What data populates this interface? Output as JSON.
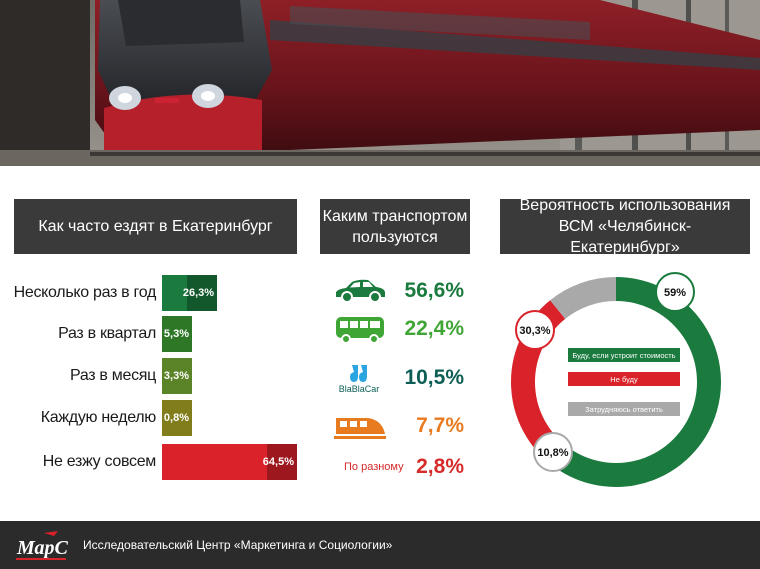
{
  "panels": {
    "frequency": {
      "title": "Как часто ездят в Екатеринбург"
    },
    "transport": {
      "title": "Каким транспортом пользуются"
    },
    "probability": {
      "title": "Вероятность использования ВСМ «Челябинск-Екатеринбург»"
    }
  },
  "colors": {
    "dark_green": "#1b7a3e",
    "green": "#3fa535",
    "light_green": "#7fb73a",
    "olive": "#b3ad26",
    "red": "#d9222a",
    "teal": "#0d5e55",
    "orange": "#e87a1f",
    "grey": "#a9a9a9",
    "header_bg": "#3a3a3a",
    "footer_bg": "#2b2b2b"
  },
  "chart_data": [
    {
      "type": "bar",
      "orientation": "horizontal",
      "title": "Как часто ездят в Екатеринбург",
      "categories": [
        "Несколько раз в год",
        "Раз в квартал",
        "Раз в месяц",
        "Каждую неделю",
        "Не езжу совсем"
      ],
      "values": [
        26.3,
        5.3,
        3.3,
        0.8,
        64.5
      ],
      "value_labels": [
        "26,3%",
        "5,3%",
        "3,3%",
        "0,8%",
        "64,5%"
      ],
      "bar_colors": [
        "#1b7a3e",
        "#3fa535",
        "#7fb73a",
        "#b3ad26",
        "#d9222a"
      ]
    },
    {
      "type": "table",
      "title": "Каким транспортом пользуются",
      "rows": [
        {
          "icon": "car-icon",
          "value": 56.6,
          "label": "56,6%",
          "color": "#1b7a3e"
        },
        {
          "icon": "bus-icon",
          "value": 22.4,
          "label": "22,4%",
          "color": "#3fa535"
        },
        {
          "icon": "blablacar-icon",
          "logo_text": "BlaBlaCar",
          "value": 10.5,
          "label": "10,5%",
          "color": "#0d5e55"
        },
        {
          "icon": "train-icon",
          "value": 7.7,
          "label": "7,7%",
          "color": "#e87a1f"
        },
        {
          "icon": "",
          "text": "По разному",
          "value": 2.8,
          "label": "2,8%",
          "color": "#d62b2b"
        }
      ]
    },
    {
      "type": "pie",
      "donut": true,
      "title": "Вероятность использования ВСМ «Челябинск-Екатеринбург»",
      "slices": [
        {
          "name": "Буду, если устроит стоимость",
          "value": 59,
          "label": "59%",
          "color": "#1b7a3e"
        },
        {
          "name": "Не буду",
          "value": 30.3,
          "label": "30,3%",
          "color": "#d9222a"
        },
        {
          "name": "Затрудняюсь ответить",
          "value": 10.8,
          "label": "10,8%",
          "color": "#a9a9a9"
        }
      ],
      "legend_placement": "center"
    }
  ],
  "footer": {
    "org": "Исследовательский Центр «Маркетинга и Социологии»",
    "logo_text": "МарС"
  }
}
